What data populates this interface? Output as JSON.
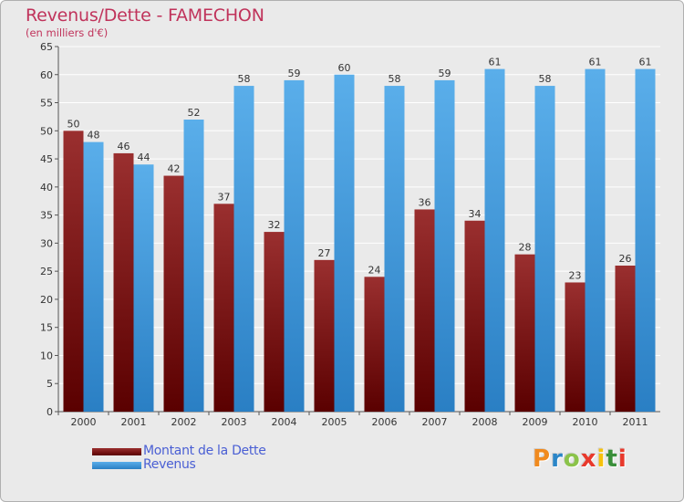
{
  "title": "Revenus/Dette - FAMECHON",
  "subtitle": "(en milliers d'€)",
  "logo": {
    "text": "Proxiti",
    "colors": [
      "#f08a1e",
      "#2b86c8",
      "#8bc34a",
      "#e8392c",
      "#f6c20c",
      "#3a8f3a",
      "#e8392c"
    ]
  },
  "colors": {
    "title": "#c0335b",
    "legend_text": "#4a5fd4",
    "dette": "#8b2020",
    "revenus": "#4aa3e3",
    "background": "#eaeaea"
  },
  "chart_data": {
    "type": "bar",
    "categories": [
      "2000",
      "2001",
      "2002",
      "2003",
      "2004",
      "2005",
      "2006",
      "2007",
      "2008",
      "2009",
      "2010",
      "2011"
    ],
    "series": [
      {
        "name": "Montant de la Dette",
        "values": [
          50,
          46,
          42,
          37,
          32,
          27,
          24,
          36,
          34,
          28,
          23,
          26
        ]
      },
      {
        "name": "Revenus",
        "values": [
          48,
          44,
          52,
          58,
          59,
          60,
          58,
          59,
          61,
          58,
          61,
          61
        ]
      }
    ],
    "ylim": [
      0,
      65
    ],
    "yticks": [
      0,
      5,
      10,
      15,
      20,
      25,
      30,
      35,
      40,
      45,
      50,
      55,
      60,
      65
    ],
    "grid": true,
    "legend": "bottom-left"
  }
}
